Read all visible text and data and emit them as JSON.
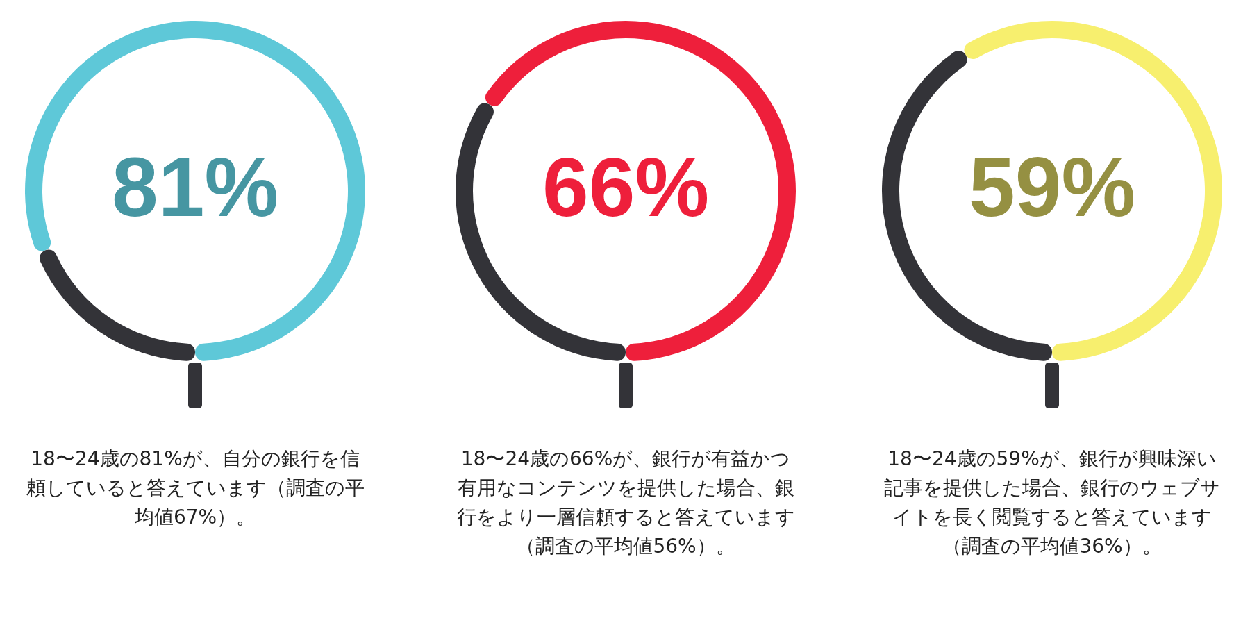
{
  "chart_data": [
    {
      "type": "donut",
      "categories": [
        null,
        null
      ],
      "values": [
        81,
        19
      ],
      "colors": [
        "#5ec8d8",
        "#333338"
      ],
      "value_labels": [
        "81%",
        null
      ],
      "annotations": [
        "18〜24歳の81%が、自分の銀行を信頼していると答えています（調査の平均値67%）。"
      ]
    },
    {
      "type": "donut",
      "categories": [
        null,
        null
      ],
      "values": [
        66,
        34
      ],
      "colors": [
        "#ee1f3b",
        "#333338"
      ],
      "value_labels": [
        "66%",
        null
      ],
      "annotations": [
        "18〜24歳の66%が、銀行が有益かつ有用なコンテンツを提供した場合、銀行をより一層信頼すると答えています（調査の平均値56%）。"
      ]
    },
    {
      "type": "donut",
      "categories": [
        null,
        null
      ],
      "values": [
        59,
        41
      ],
      "colors": [
        "#f7ef6e",
        "#333338"
      ],
      "value_labels": [
        "59%",
        null
      ],
      "annotations": [
        "18〜24歳の59%が、銀行が興味深い記事を提供した場合、銀行のウェブサイトを長く閲覧すると答えています（調査の平均値36%）。"
      ]
    }
  ]
}
